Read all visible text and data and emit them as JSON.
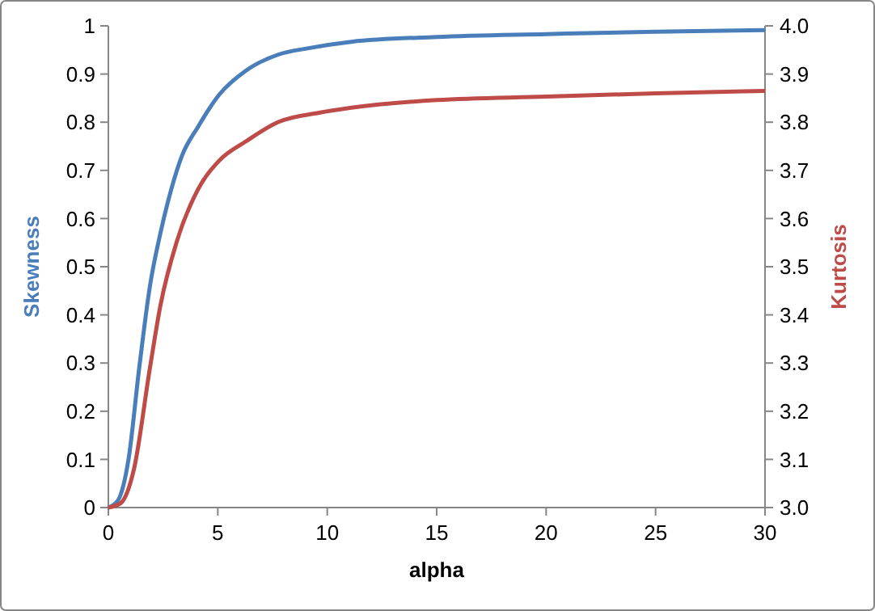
{
  "chart_data": {
    "type": "line",
    "xlabel": "alpha",
    "ylabel": "Skewness",
    "y2label": "Kurtosis",
    "xlim": [
      0,
      30
    ],
    "xticks": [
      0,
      5,
      10,
      15,
      20,
      25,
      30
    ],
    "ylim": [
      0,
      1
    ],
    "yticks": [
      0,
      0.1,
      0.2,
      0.3,
      0.4,
      0.5,
      0.6,
      0.7,
      0.8,
      0.9,
      1
    ],
    "y2lim": [
      3,
      4
    ],
    "y2ticks": [
      {
        "value": 3,
        "label": "3.0"
      },
      3.1,
      3.2,
      3.3,
      3.4,
      3.5,
      3.6,
      3.7,
      3.8,
      3.9,
      {
        "value": 4,
        "label": "4.0"
      }
    ],
    "grid": false,
    "line_style": "solid",
    "series": [
      {
        "color": "#4a7ebb",
        "x": [
          0,
          0.44,
          0.92,
          1.41,
          1.9,
          2.38,
          2.87,
          3.36,
          4.09,
          5.06,
          6.28,
          7.74,
          9.2,
          11.1,
          15,
          20,
          25,
          30
        ],
        "values": [
          0,
          0.015,
          0.1,
          0.29,
          0.46,
          0.57,
          0.66,
          0.73,
          0.79,
          0.857,
          0.907,
          0.94,
          0.954,
          0.967,
          0.977,
          0.983,
          0.988,
          0.991
        ]
      },
      {
        "color": "#be4b48",
        "axis": "y2",
        "x": [
          0,
          0.56,
          1.17,
          1.9,
          2.38,
          3.11,
          4.09,
          5.06,
          6.28,
          7.74,
          9.68,
          11.1,
          15,
          20,
          25,
          30
        ],
        "values": [
          3,
          3.009,
          3.08,
          3.29,
          3.42,
          3.55,
          3.66,
          3.72,
          3.76,
          3.8,
          3.82,
          3.83,
          3.846,
          3.853,
          3.86,
          3.865
        ]
      }
    ]
  }
}
